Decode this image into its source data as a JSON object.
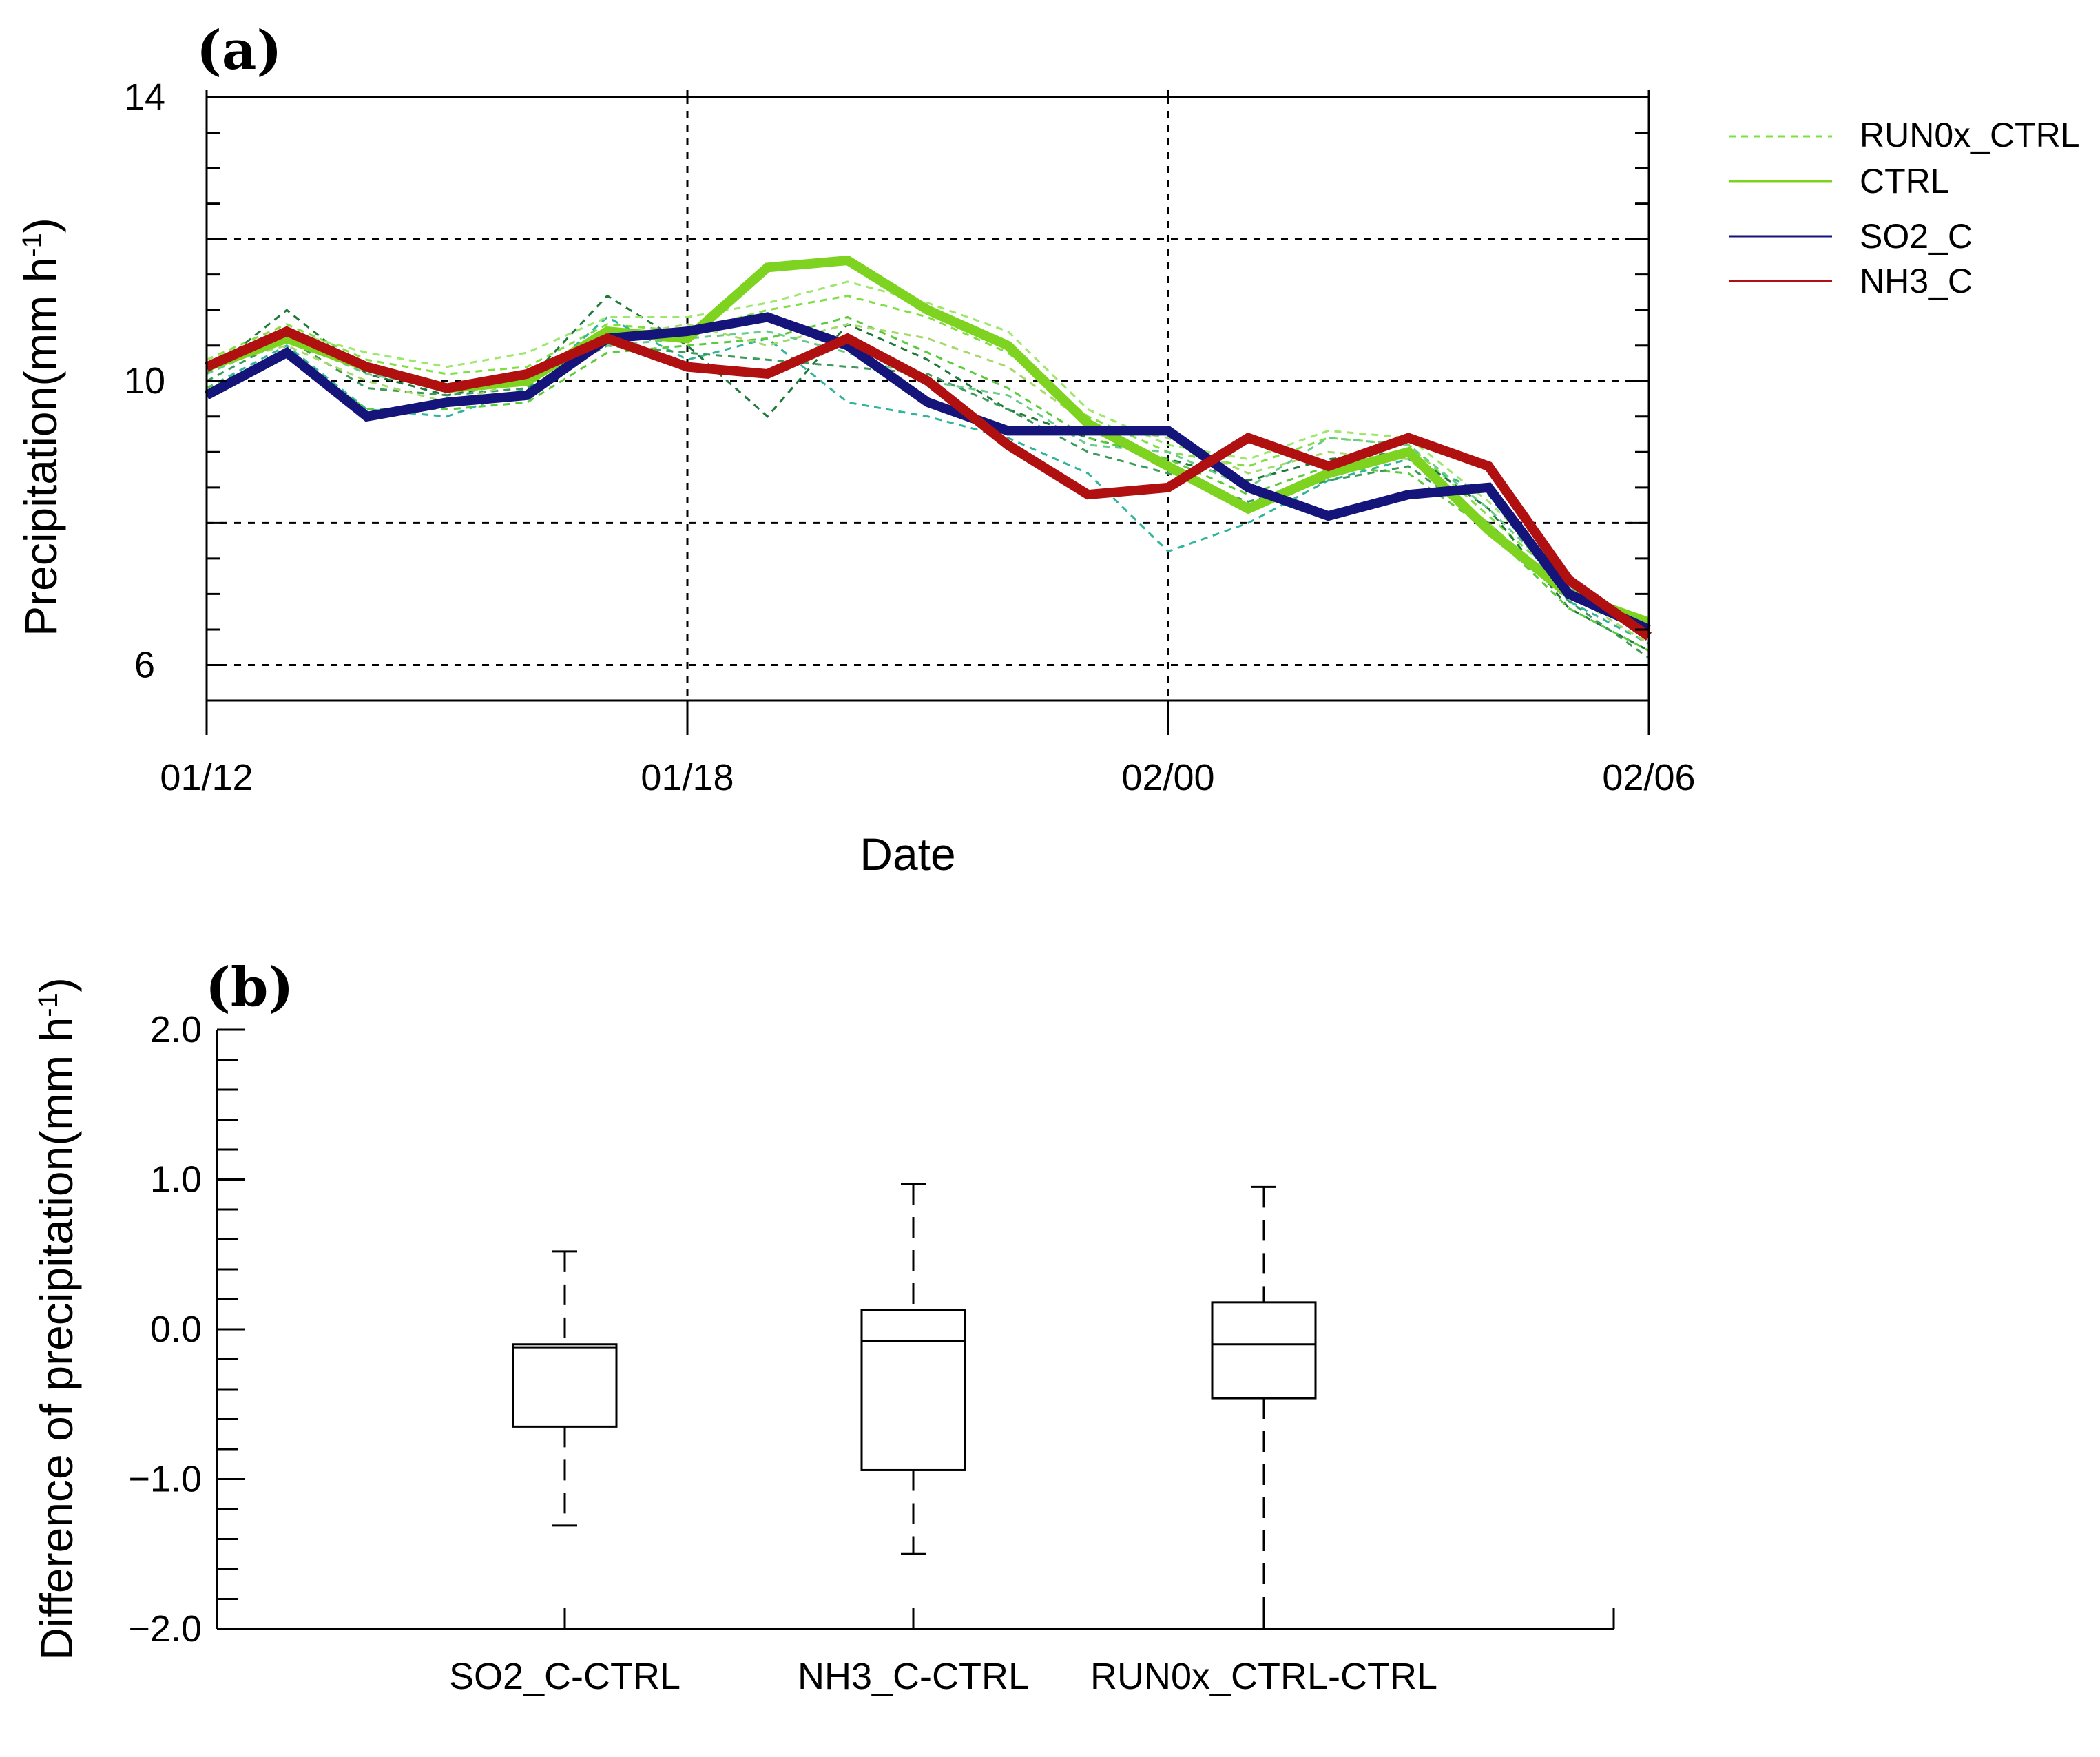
{
  "chart_data": [
    {
      "panel": "(a)",
      "type": "line",
      "xlabel": "Date",
      "ylabel": "Precipitation(mm h",
      "ylabel_sup": "-1",
      "ylabel_close": ")",
      "x_tick_labels": [
        "01/12",
        "01/18",
        "02/00",
        "02/06"
      ],
      "x_tick_index": [
        0,
        6,
        12,
        18
      ],
      "ylim": [
        5.5,
        14
      ],
      "y_ticks": [
        6,
        10,
        14
      ],
      "y_tick_labels": [
        "6",
        "10",
        "14"
      ],
      "y_gridlines": [
        6,
        8,
        10,
        12,
        14
      ],
      "y_minor_step": 0.5,
      "grid": "dashed",
      "legend_position": "top-right outside",
      "legend": [
        {
          "label": "RUN0x_CTRL",
          "style": "dashed",
          "color": "#7ee040"
        },
        {
          "label": "CTRL",
          "style": "solid",
          "color": "#7ed321"
        },
        {
          "label": "SO2_C",
          "style": "solid",
          "color": "#14147a"
        },
        {
          "label": "NH3_C",
          "style": "solid",
          "color": "#b01010"
        }
      ],
      "series": [
        {
          "name": "CTRL",
          "color": "#7ed321",
          "width": 14,
          "values": [
            10.2,
            10.6,
            10.2,
            9.9,
            10.0,
            10.7,
            10.6,
            11.6,
            11.7,
            11.0,
            10.5,
            9.4,
            8.8,
            8.2,
            8.7,
            9.0,
            7.9,
            7.0,
            6.6
          ]
        },
        {
          "name": "SO2_C",
          "color": "#14147a",
          "width": 14,
          "values": [
            9.8,
            10.4,
            9.5,
            9.7,
            9.8,
            10.6,
            10.7,
            10.9,
            10.5,
            9.7,
            9.3,
            9.3,
            9.3,
            8.5,
            8.1,
            8.4,
            8.5,
            7.0,
            6.5
          ]
        },
        {
          "name": "NH3_C",
          "color": "#b01010",
          "width": 14,
          "values": [
            10.2,
            10.7,
            10.2,
            9.9,
            10.1,
            10.6,
            10.2,
            10.1,
            10.6,
            10.0,
            9.1,
            8.4,
            8.5,
            9.2,
            8.8,
            9.2,
            8.8,
            7.2,
            6.4
          ]
        }
      ],
      "ensemble": [
        {
          "name": "RUN0x_CTRL",
          "color": "#7ee040",
          "values": [
            10.3,
            10.8,
            10.3,
            10.1,
            10.2,
            10.8,
            10.7,
            11.0,
            11.2,
            10.9,
            10.4,
            9.5,
            9.0,
            8.8,
            9.2,
            9.1,
            8.1,
            7.1,
            6.4
          ]
        },
        {
          "name": "RUN0x_CTRL",
          "color": "#2fb59a",
          "values": [
            9.9,
            10.5,
            9.6,
            9.5,
            9.9,
            10.9,
            10.3,
            10.6,
            9.7,
            9.5,
            9.2,
            8.7,
            7.6,
            8.0,
            8.6,
            8.9,
            8.4,
            6.9,
            6.3
          ]
        },
        {
          "name": "RUN0x_CTRL",
          "color": "#1e7a3a",
          "values": [
            10.1,
            11.0,
            10.1,
            9.8,
            10.0,
            11.2,
            10.5,
            9.5,
            10.8,
            10.3,
            9.6,
            9.2,
            8.9,
            8.6,
            8.9,
            9.0,
            8.2,
            6.8,
            6.2
          ]
        },
        {
          "name": "RUN0x_CTRL",
          "color": "#9be86a",
          "values": [
            10.3,
            10.7,
            10.4,
            10.2,
            10.4,
            10.9,
            10.9,
            11.1,
            11.4,
            11.1,
            10.7,
            9.6,
            9.1,
            8.9,
            9.3,
            9.2,
            8.3,
            7.2,
            6.5
          ]
        },
        {
          "name": "RUN0x_CTRL",
          "color": "#5acb3a",
          "values": [
            9.9,
            10.4,
            9.6,
            9.6,
            9.7,
            10.4,
            10.5,
            10.6,
            10.9,
            10.4,
            9.9,
            9.2,
            8.9,
            8.4,
            8.8,
            8.7,
            7.9,
            6.8,
            6.2
          ]
        },
        {
          "name": "RUN0x_CTRL",
          "color": "#3c9a5a",
          "values": [
            10.0,
            10.6,
            9.9,
            9.8,
            9.9,
            10.5,
            10.4,
            10.3,
            10.2,
            10.1,
            9.6,
            9.0,
            8.7,
            8.3,
            8.6,
            8.8,
            8.0,
            6.9,
            6.1
          ]
        },
        {
          "name": "RUN0x_CTRL",
          "color": "#a6d96a",
          "values": [
            10.2,
            10.5,
            10.0,
            9.7,
            10.0,
            10.6,
            10.8,
            10.5,
            10.8,
            10.6,
            10.2,
            9.4,
            9.2,
            8.7,
            9.0,
            8.9,
            8.0,
            7.0,
            6.3
          ]
        },
        {
          "name": "RUN0x_CTRL",
          "color": "#66cc88",
          "values": [
            10.1,
            10.6,
            10.1,
            9.9,
            10.1,
            10.5,
            10.6,
            10.7,
            10.4,
            10.0,
            9.8,
            9.1,
            9.0,
            8.5,
            9.2,
            9.1,
            8.2,
            7.1,
            6.4
          ]
        }
      ]
    },
    {
      "panel": "(b)",
      "type": "box",
      "ylabel": "Difference of precipitation(mm h",
      "ylabel_sup": "-1",
      "ylabel_close": ")",
      "ylim": [
        -2.0,
        2.0
      ],
      "y_ticks": [
        2.0,
        1.0,
        0.0,
        -1.0,
        -2.0
      ],
      "y_tick_labels": [
        "2.0",
        "1.0",
        "0.0",
        "−1.0",
        "−2.0"
      ],
      "y_minor_step": 0.2,
      "categories": [
        "SO2_C-CTRL",
        "NH3_C-CTRL",
        "RUN0x_CTRL-CTRL"
      ],
      "boxes": [
        {
          "category": "SO2_C-CTRL",
          "min": -1.31,
          "q1": -0.65,
          "median": -0.12,
          "q3": -0.1,
          "max": 0.52
        },
        {
          "category": "NH3_C-CTRL",
          "min": -1.5,
          "q1": -0.94,
          "median": -0.08,
          "q3": 0.13,
          "max": 0.97
        },
        {
          "category": "RUN0x_CTRL-CTRL",
          "min": -2.0,
          "q1": -0.46,
          "median": -0.1,
          "q3": 0.18,
          "max": 0.95
        }
      ]
    }
  ]
}
